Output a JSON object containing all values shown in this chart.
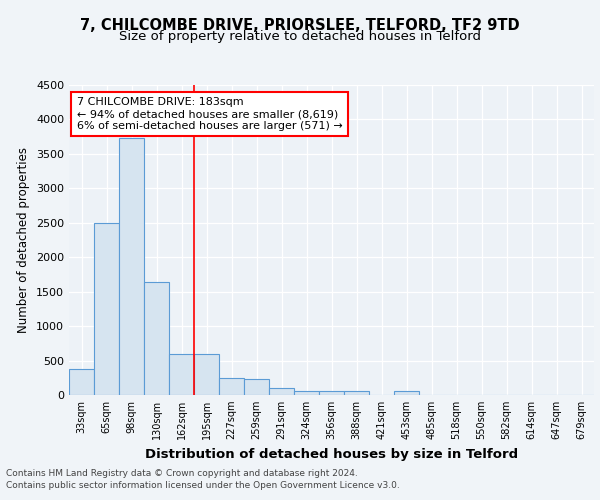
{
  "title1": "7, CHILCOMBE DRIVE, PRIORSLEE, TELFORD, TF2 9TD",
  "title2": "Size of property relative to detached houses in Telford",
  "xlabel": "Distribution of detached houses by size in Telford",
  "ylabel": "Number of detached properties",
  "categories": [
    "33sqm",
    "65sqm",
    "98sqm",
    "130sqm",
    "162sqm",
    "195sqm",
    "227sqm",
    "259sqm",
    "291sqm",
    "324sqm",
    "356sqm",
    "388sqm",
    "421sqm",
    "453sqm",
    "485sqm",
    "518sqm",
    "550sqm",
    "582sqm",
    "614sqm",
    "647sqm",
    "679sqm"
  ],
  "values": [
    375,
    2500,
    3730,
    1640,
    600,
    600,
    240,
    235,
    100,
    60,
    55,
    55,
    0,
    60,
    0,
    0,
    0,
    0,
    0,
    0,
    0
  ],
  "bar_color": "#d6e4f0",
  "bar_edge_color": "#5b9bd5",
  "vline_x": 4.5,
  "annotation_text": "7 CHILCOMBE DRIVE: 183sqm\n← 94% of detached houses are smaller (8,619)\n6% of semi-detached houses are larger (571) →",
  "annotation_box_color": "white",
  "annotation_box_edge_color": "red",
  "vline_color": "red",
  "footer1": "Contains HM Land Registry data © Crown copyright and database right 2024.",
  "footer2": "Contains public sector information licensed under the Open Government Licence v3.0.",
  "ylim": [
    0,
    4500
  ],
  "yticks": [
    0,
    500,
    1000,
    1500,
    2000,
    2500,
    3000,
    3500,
    4000,
    4500
  ],
  "bg_color": "#f0f4f8",
  "plot_bg_color": "#edf2f7",
  "title1_fontsize": 10.5,
  "title2_fontsize": 9.5,
  "xlabel_fontsize": 9.5,
  "ylabel_fontsize": 8.5,
  "footer_fontsize": 6.5
}
